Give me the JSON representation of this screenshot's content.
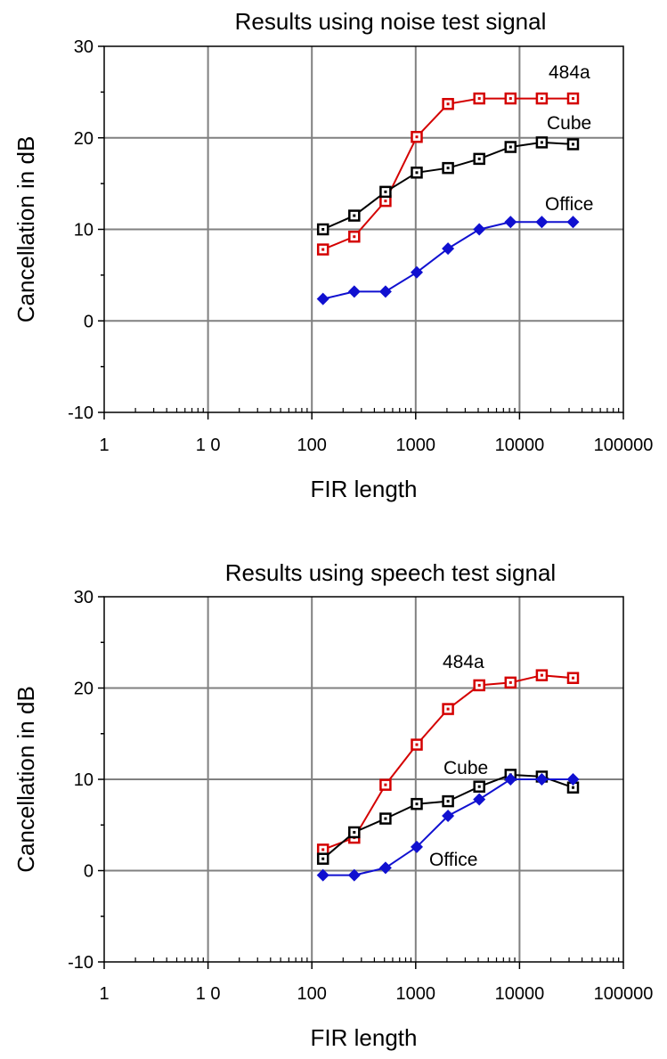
{
  "chart_data": [
    {
      "type": "line",
      "title": "Results using noise test signal",
      "xlabel": "FIR length",
      "ylabel": "Cancellation in dB",
      "xscale": "log",
      "xlim": [
        1,
        100000
      ],
      "ylim": [
        -10,
        30
      ],
      "x_ticks": [
        "1",
        "1 0",
        "100",
        "1000",
        "10000",
        "100000"
      ],
      "y_ticks": [
        "-10",
        "0",
        "10",
        "20",
        "30"
      ],
      "grid": true,
      "x": [
        128,
        256,
        512,
        1024,
        2048,
        4096,
        8192,
        16384,
        32768
      ],
      "series": [
        {
          "name": "484a",
          "color": "#d40000",
          "marker": "square-dot",
          "values": [
            7.8,
            9.2,
            13.1,
            20.1,
            23.7,
            24.3,
            24.3,
            24.3,
            24.3
          ]
        },
        {
          "name": "Cube",
          "color": "#000000",
          "marker": "square-dot",
          "values": [
            10.0,
            11.5,
            14.1,
            16.2,
            16.7,
            17.7,
            19.0,
            19.5,
            19.3
          ]
        },
        {
          "name": "Office",
          "color": "#1010d0",
          "marker": "diamond",
          "values": [
            2.4,
            3.2,
            3.2,
            5.3,
            7.9,
            10.0,
            10.8,
            10.8,
            10.8
          ]
        }
      ]
    },
    {
      "type": "line",
      "title": "Results using speech test signal",
      "xlabel": "FIR length",
      "ylabel": "Cancellation in dB",
      "xscale": "log",
      "xlim": [
        1,
        100000
      ],
      "ylim": [
        -10,
        30
      ],
      "x_ticks": [
        "1",
        "1 0",
        "100",
        "1000",
        "10000",
        "100000"
      ],
      "y_ticks": [
        "-10",
        "0",
        "10",
        "20",
        "30"
      ],
      "grid": true,
      "x": [
        128,
        256,
        512,
        1024,
        2048,
        4096,
        8192,
        16384,
        32768
      ],
      "series": [
        {
          "name": "484a",
          "color": "#d40000",
          "marker": "square-dot",
          "values": [
            2.3,
            3.6,
            9.4,
            13.8,
            17.7,
            20.3,
            20.6,
            21.4,
            21.1
          ]
        },
        {
          "name": "Cube",
          "color": "#000000",
          "marker": "square-dot",
          "values": [
            1.3,
            4.2,
            5.7,
            7.3,
            7.6,
            9.2,
            10.5,
            10.3,
            9.1
          ]
        },
        {
          "name": "Office",
          "color": "#1010d0",
          "marker": "diamond",
          "values": [
            -0.5,
            -0.5,
            0.3,
            2.6,
            6.0,
            7.8,
            10.0,
            10.0,
            10.0
          ]
        }
      ]
    }
  ]
}
